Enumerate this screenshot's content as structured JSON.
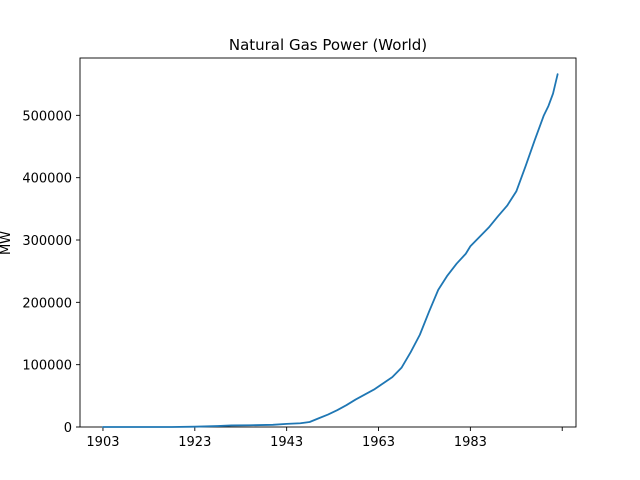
{
  "chart_data": {
    "type": "line",
    "title": "Natural Gas Power (World)",
    "xlabel": "",
    "ylabel": "MW",
    "x_ticks": [
      "1903",
      "1923",
      "1943",
      "1963",
      "1983",
      ""
    ],
    "y_ticks": [
      "0",
      "100000",
      "200000",
      "300000",
      "400000",
      "500000"
    ],
    "xlim": [
      1898,
      2006
    ],
    "ylim": [
      0,
      592000
    ],
    "grid": false,
    "legend": "none",
    "line_color": "#1f77b4",
    "series": [
      {
        "x": [
          1903,
          1908,
          1913,
          1918,
          1923,
          1928,
          1931,
          1935,
          1940,
          1943,
          1946,
          1948,
          1950,
          1952,
          1954,
          1956,
          1958,
          1960,
          1962,
          1964,
          1966,
          1968,
          1970,
          1972,
          1974,
          1976,
          1978,
          1980,
          1982,
          1983,
          1985,
          1987,
          1989,
          1991,
          1993,
          1995,
          1997,
          1999,
          2000,
          2001,
          2002
        ],
        "values": [
          0,
          0,
          0,
          0,
          500,
          1500,
          2500,
          2800,
          3500,
          5000,
          6000,
          8000,
          14000,
          20000,
          27000,
          35000,
          44000,
          52000,
          60000,
          70000,
          80000,
          95000,
          120000,
          148000,
          185000,
          220000,
          243000,
          262000,
          278000,
          290000,
          305000,
          320000,
          338000,
          355000,
          378000,
          418000,
          460000,
          500000,
          515000,
          535000,
          566000
        ]
      }
    ]
  }
}
